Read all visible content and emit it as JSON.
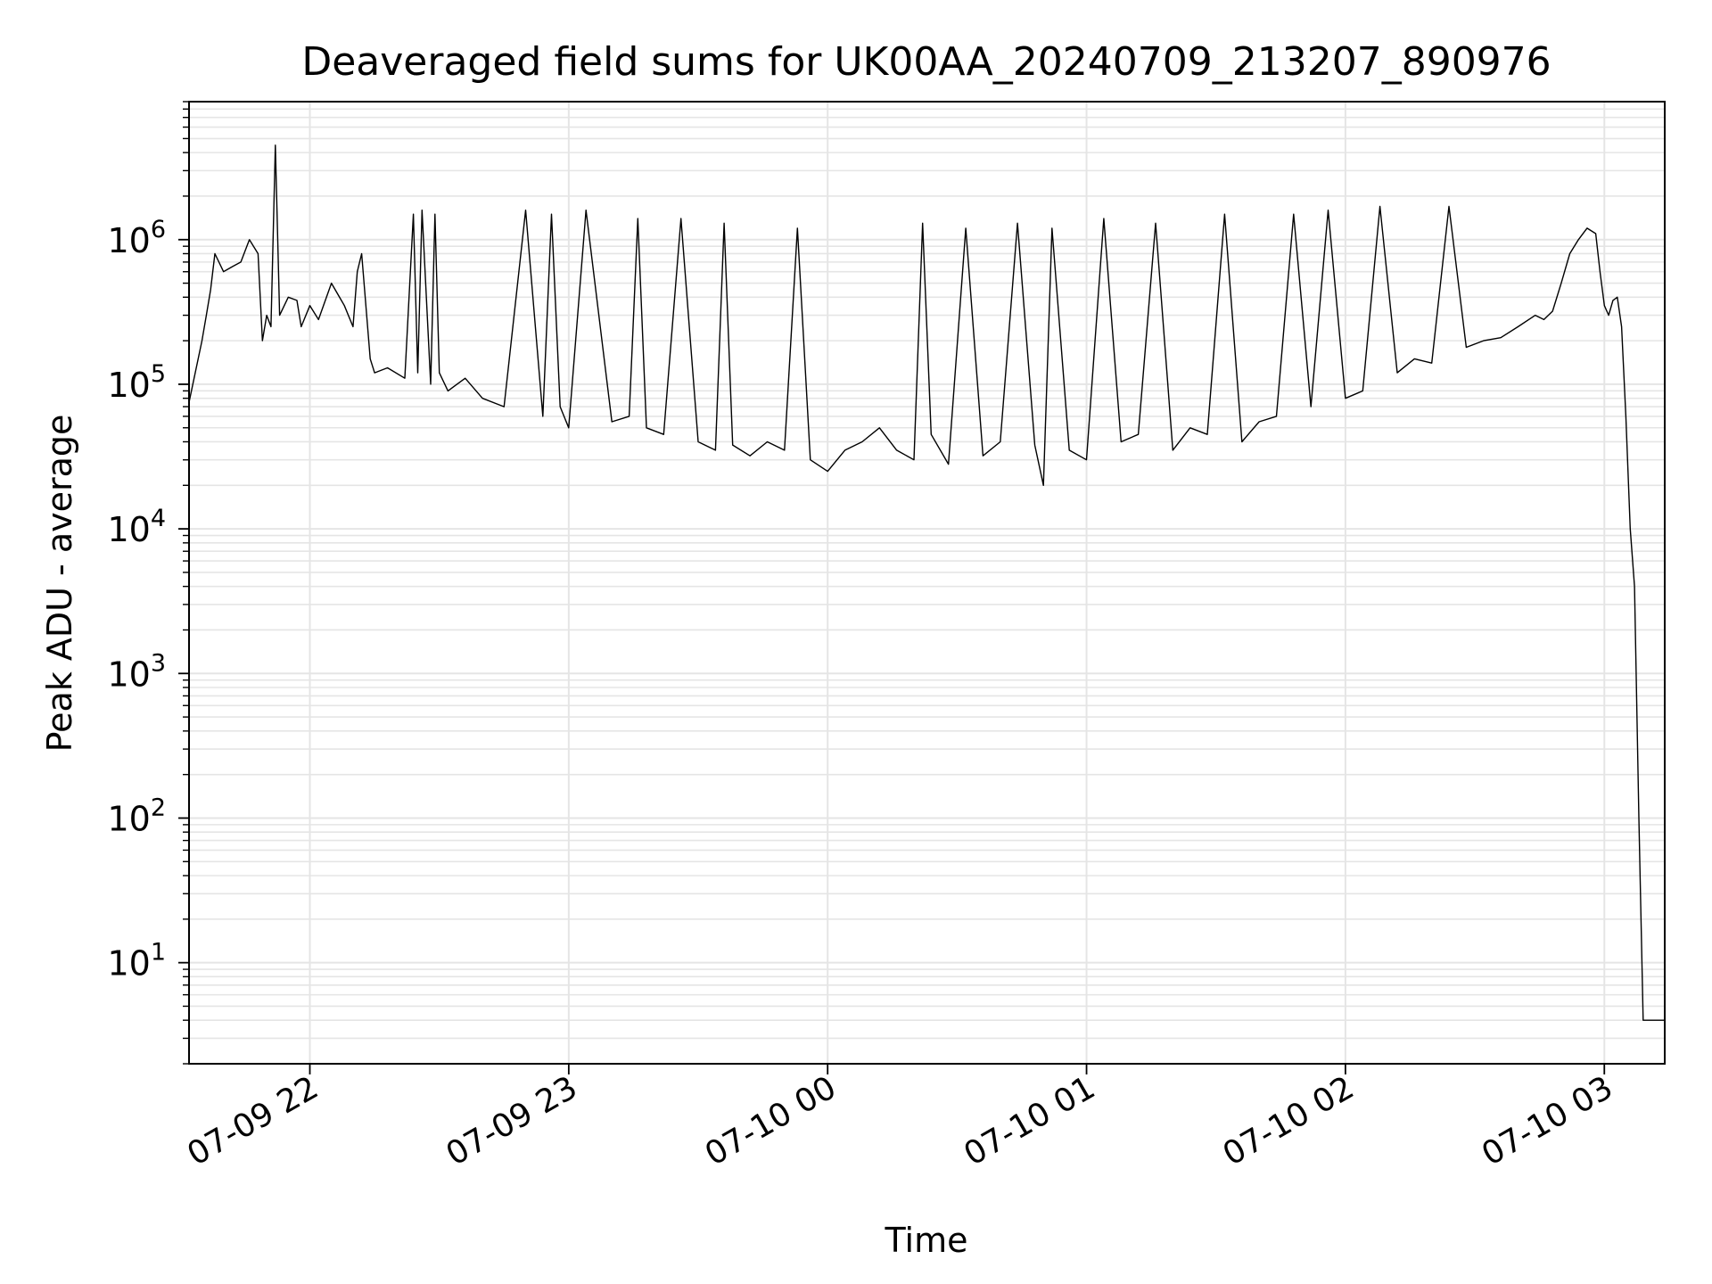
{
  "chart_data": {
    "type": "line",
    "title": "Deaveraged field sums for UK00AA_20240709_213207_890976",
    "xlabel": "Time",
    "ylabel": "Peak ADU - average",
    "yscale": "log",
    "xlim": [
      "2024-07-09 21:32",
      "2024-07-10 03:14"
    ],
    "ylim": [
      2,
      9000000
    ],
    "grid": true,
    "line_color": "#000000",
    "grid_color": "#e5e5e5",
    "x_ticks": [
      {
        "value": "2024-07-09 22:00",
        "label": "07-09 22"
      },
      {
        "value": "2024-07-09 23:00",
        "label": "07-09 23"
      },
      {
        "value": "2024-07-10 00:00",
        "label": "07-10 00"
      },
      {
        "value": "2024-07-10 01:00",
        "label": "07-10 01"
      },
      {
        "value": "2024-07-10 02:00",
        "label": "07-10 02"
      },
      {
        "value": "2024-07-10 03:00",
        "label": "07-10 03"
      }
    ],
    "y_ticks": [
      {
        "value": 10,
        "base": "10",
        "exp": "1"
      },
      {
        "value": 100,
        "base": "10",
        "exp": "2"
      },
      {
        "value": 1000,
        "base": "10",
        "exp": "3"
      },
      {
        "value": 10000,
        "base": "10",
        "exp": "4"
      },
      {
        "value": 100000,
        "base": "10",
        "exp": "5"
      },
      {
        "value": 1000000,
        "base": "10",
        "exp": "6"
      }
    ],
    "series": [
      {
        "x": [
          "2024-07-09 21:32",
          "2024-07-09 21:35",
          "2024-07-09 21:36",
          "2024-07-09 21:37",
          "2024-07-09 21:38",
          "2024-07-09 21:40",
          "2024-07-09 21:42",
          "2024-07-09 21:44",
          "2024-07-09 21:46",
          "2024-07-09 21:48",
          "2024-07-09 21:49",
          "2024-07-09 21:50",
          "2024-07-09 21:51",
          "2024-07-09 21:52",
          "2024-07-09 21:53",
          "2024-07-09 21:55",
          "2024-07-09 21:57",
          "2024-07-09 21:58",
          "2024-07-09 22:00",
          "2024-07-09 22:02",
          "2024-07-09 22:05",
          "2024-07-09 22:08",
          "2024-07-09 22:10",
          "2024-07-09 22:11",
          "2024-07-09 22:12",
          "2024-07-09 22:14",
          "2024-07-09 22:15",
          "2024-07-09 22:18",
          "2024-07-09 22:22",
          "2024-07-09 22:24",
          "2024-07-09 22:25",
          "2024-07-09 22:26",
          "2024-07-09 22:28",
          "2024-07-09 22:29",
          "2024-07-09 22:30",
          "2024-07-09 22:32",
          "2024-07-09 22:36",
          "2024-07-09 22:40",
          "2024-07-09 22:45",
          "2024-07-09 22:50",
          "2024-07-09 22:54",
          "2024-07-09 22:56",
          "2024-07-09 22:58",
          "2024-07-09 23:00",
          "2024-07-09 23:04",
          "2024-07-09 23:10",
          "2024-07-09 23:14",
          "2024-07-09 23:16",
          "2024-07-09 23:18",
          "2024-07-09 23:22",
          "2024-07-09 23:26",
          "2024-07-09 23:30",
          "2024-07-09 23:34",
          "2024-07-09 23:36",
          "2024-07-09 23:38",
          "2024-07-09 23:42",
          "2024-07-09 23:46",
          "2024-07-09 23:50",
          "2024-07-09 23:53",
          "2024-07-09 23:56",
          "2024-07-10 00:00",
          "2024-07-10 00:04",
          "2024-07-10 00:08",
          "2024-07-10 00:12",
          "2024-07-10 00:16",
          "2024-07-10 00:20",
          "2024-07-10 00:22",
          "2024-07-10 00:24",
          "2024-07-10 00:28",
          "2024-07-10 00:32",
          "2024-07-10 00:36",
          "2024-07-10 00:40",
          "2024-07-10 00:44",
          "2024-07-10 00:48",
          "2024-07-10 00:50",
          "2024-07-10 00:52",
          "2024-07-10 00:56",
          "2024-07-10 01:00",
          "2024-07-10 01:04",
          "2024-07-10 01:08",
          "2024-07-10 01:12",
          "2024-07-10 01:16",
          "2024-07-10 01:20",
          "2024-07-10 01:24",
          "2024-07-10 01:28",
          "2024-07-10 01:32",
          "2024-07-10 01:36",
          "2024-07-10 01:40",
          "2024-07-10 01:44",
          "2024-07-10 01:48",
          "2024-07-10 01:52",
          "2024-07-10 01:56",
          "2024-07-10 02:00",
          "2024-07-10 02:04",
          "2024-07-10 02:08",
          "2024-07-10 02:12",
          "2024-07-10 02:16",
          "2024-07-10 02:20",
          "2024-07-10 02:24",
          "2024-07-10 02:28",
          "2024-07-10 02:32",
          "2024-07-10 02:36",
          "2024-07-10 02:40",
          "2024-07-10 02:44",
          "2024-07-10 02:46",
          "2024-07-10 02:48",
          "2024-07-10 02:50",
          "2024-07-10 02:52",
          "2024-07-10 02:54",
          "2024-07-10 02:56",
          "2024-07-10 02:58",
          "2024-07-10 02:59",
          "2024-07-10 03:00",
          "2024-07-10 03:01",
          "2024-07-10 03:02",
          "2024-07-10 03:03",
          "2024-07-10 03:04",
          "2024-07-10 03:05",
          "2024-07-10 03:06",
          "2024-07-10 03:07",
          "2024-07-10 03:08",
          "2024-07-10 03:09",
          "2024-07-10 03:10",
          "2024-07-10 03:11",
          "2024-07-10 03:12",
          "2024-07-10 03:13",
          "2024-07-10 03:14"
        ],
        "y": [
          75000,
          200000,
          300000,
          450000,
          800000,
          600000,
          650000,
          700000,
          1000000,
          800000,
          200000,
          300000,
          250000,
          4500000,
          300000,
          400000,
          380000,
          250000,
          350000,
          280000,
          500000,
          350000,
          250000,
          600000,
          800000,
          150000,
          120000,
          130000,
          110000,
          1500000,
          120000,
          1600000,
          100000,
          1500000,
          120000,
          90000,
          110000,
          80000,
          70000,
          1600000,
          60000,
          1500000,
          70000,
          50000,
          1600000,
          55000,
          60000,
          1400000,
          50000,
          45000,
          1400000,
          40000,
          35000,
          1300000,
          38000,
          32000,
          40000,
          35000,
          1200000,
          30000,
          25000,
          35000,
          40000,
          50000,
          35000,
          30000,
          1300000,
          45000,
          28000,
          1200000,
          32000,
          40000,
          1300000,
          38000,
          20000,
          1200000,
          35000,
          30000,
          1400000,
          40000,
          45000,
          1300000,
          35000,
          50000,
          45000,
          1500000,
          40000,
          55000,
          60000,
          1500000,
          70000,
          1600000,
          80000,
          90000,
          1700000,
          120000,
          150000,
          140000,
          1700000,
          180000,
          200000,
          210000,
          250000,
          300000,
          280000,
          320000,
          500000,
          800000,
          1000000,
          1200000,
          1100000,
          600000,
          350000,
          300000,
          380000,
          400000,
          250000,
          60000,
          10000,
          4000,
          100,
          4,
          4,
          4,
          4,
          4,
          4
        ]
      }
    ]
  }
}
